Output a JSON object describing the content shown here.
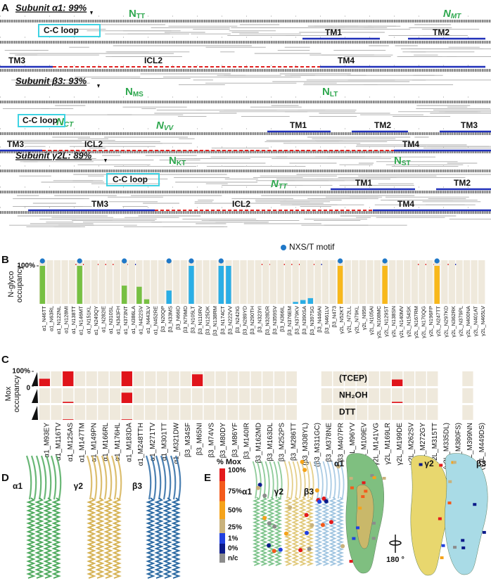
{
  "panel_a": {
    "letter": "A",
    "subunits": [
      {
        "title": "Subunit α1:  99%",
        "sites": [
          {
            "n": "N",
            "rest": "TT"
          },
          {
            "n": "N",
            "rest": "MT"
          }
        ],
        "regions": [
          "C-C loop",
          "TM1",
          "TM2",
          "TM3",
          "ICL2",
          "TM4"
        ]
      },
      {
        "title": "Subunit β3:  93%",
        "sites": [
          {
            "n": "N",
            "rest": "MS"
          },
          {
            "n": "N",
            "rest": "LT"
          },
          {
            "n": "N",
            "rest": "CT"
          },
          {
            "n": "N",
            "rest": "VV"
          }
        ],
        "regions": [
          "C-C loop",
          "TM1",
          "TM2",
          "TM3",
          "TM3",
          "ICL2",
          "TM4"
        ]
      },
      {
        "title": "Subunit γ2L:  89%",
        "sites": [
          {
            "n": "N",
            "rest": "KT"
          },
          {
            "n": "N",
            "rest": "ST"
          },
          {
            "n": "N",
            "rest": "TT"
          }
        ],
        "regions": [
          "C-C loop",
          "TM1",
          "TM2",
          "TM3",
          "ICL2",
          "TM4"
        ]
      }
    ]
  },
  "chart_data": [
    {
      "type": "bar",
      "panel_label": "B",
      "ylabel": [
        "N-glyco",
        "occupancy"
      ],
      "categories": [
        "α1_N46TT",
        "α1_N63RL",
        "α1_N122NL",
        "α1_N128MI",
        "α1_N138TT",
        "α1_N146MT",
        "α1_N151KL",
        "α1_N249QY",
        "α1_N282IE",
        "α1_N310SL",
        "α1_N343FH",
        "α1_N373NT",
        "α1_N386LA",
        "α1_N422SV",
        "α1_N443LV",
        "α1_N452RE",
        "β3_N20QP",
        "β3_N33MS",
        "β3_N66ID",
        "β3_N79MD",
        "β3_N105LT",
        "β3_N110RV",
        "β3_N125DK",
        "β3_N138RM",
        "β3_N174CT",
        "β3_N222VV",
        "β3_N242IG",
        "β3_N289YD",
        "β3_N290TH",
        "β3_N323YI",
        "β3_N328DR",
        "β3_N359SV",
        "β3_N366IL",
        "β3_N376EM",
        "β3_N379KV",
        "β3_N390SA",
        "β3_N397SG",
        "β3_N446AI",
        "β3_N461LV",
        "β3_N473",
        "γ2L_N52KT",
        "γ2L_N72LL",
        "γ2L_N79KL",
        "γ2L_N95II",
        "γ2L_N105AI",
        "γ2L_N108MC",
        "γ2L_N129ST",
        "γ2L_N138SN",
        "γ2L_N140MV",
        "γ2L_N154SK",
        "γ2L_N167RM",
        "γ2L_N170QG",
        "γ2L_N196FP",
        "γ2L_N247TT",
        "γ2L_N297KD",
        "γ2L_N362RK",
        "γ2L_N379PL",
        "γ2L_N400NA",
        "γ2L_N401AT",
        "γ2L_N465LV"
      ],
      "values": [
        100,
        0,
        0,
        0,
        0,
        100,
        0,
        0,
        0,
        0,
        0,
        48,
        0,
        45,
        12,
        0,
        0,
        35,
        0,
        0,
        100,
        0,
        0,
        0,
        100,
        100,
        0,
        0,
        0,
        0,
        0,
        0,
        0,
        0,
        5,
        10,
        15,
        0,
        0,
        0,
        100,
        0,
        0,
        0,
        0,
        0,
        100,
        0,
        0,
        0,
        0,
        0,
        0,
        100,
        0,
        0,
        0,
        0,
        0,
        0
      ],
      "colors": [
        "#77c043",
        "#77c043",
        "#77c043",
        "#77c043",
        "#77c043",
        "#77c043",
        "#77c043",
        "#77c043",
        "#77c043",
        "#77c043",
        "#77c043",
        "#77c043",
        "#77c043",
        "#77c043",
        "#77c043",
        "#77c043",
        "#2aaee6",
        "#2aaee6",
        "#2aaee6",
        "#2aaee6",
        "#2aaee6",
        "#2aaee6",
        "#2aaee6",
        "#2aaee6",
        "#2aaee6",
        "#2aaee6",
        "#2aaee6",
        "#2aaee6",
        "#2aaee6",
        "#2aaee6",
        "#2aaee6",
        "#2aaee6",
        "#2aaee6",
        "#2aaee6",
        "#2aaee6",
        "#2aaee6",
        "#2aaee6",
        "#2aaee6",
        "#2aaee6",
        "#2aaee6",
        "#f8b81b",
        "#f8b81b",
        "#f8b81b",
        "#f8b81b",
        "#f8b81b",
        "#f8b81b",
        "#f8b81b",
        "#f8b81b",
        "#f8b81b",
        "#f8b81b",
        "#f8b81b",
        "#f8b81b",
        "#f8b81b",
        "#f8b81b",
        "#f8b81b",
        "#f8b81b",
        "#f8b81b",
        "#f8b81b",
        "#f8b81b",
        "#f8b81b"
      ],
      "motif": [
        true,
        false,
        false,
        false,
        false,
        true,
        false,
        false,
        false,
        false,
        false,
        true,
        false,
        false,
        false,
        false,
        false,
        true,
        false,
        false,
        true,
        false,
        false,
        false,
        true,
        false,
        false,
        false,
        false,
        false,
        false,
        false,
        false,
        false,
        false,
        false,
        false,
        false,
        false,
        false,
        true,
        false,
        false,
        false,
        false,
        false,
        true,
        false,
        false,
        false,
        false,
        false,
        false,
        true,
        false,
        false,
        false,
        false,
        false,
        false
      ],
      "legend": "NXS/T motif",
      "legend_color": "#1f78c8",
      "ylim": [
        0,
        100
      ],
      "yticks": [
        {
          "value": 100,
          "label": "100%"
        }
      ]
    },
    {
      "type": "heatmap",
      "panel_label": "C",
      "ylabel": [
        "Mox",
        "occupancy"
      ],
      "categories": [
        "α1_M93EY",
        "α1_M116TV",
        "α1_M125AS",
        "α1_M147TM",
        "α1_M149PN",
        "α1_M166RL",
        "α1_M176HL",
        "α1_M183DA",
        "α1_M248TTH",
        "α1_M271TV",
        "α1_M301TT",
        "α1_M321DW",
        "β3_M34SF",
        "β3_M65NI",
        "β3_M74VS",
        "β3_M80DY",
        "β3_M86YF",
        "β3_M140IR",
        "β3_M162MD",
        "β3_M163DL",
        "β3_M252PS",
        "β3_M286TT",
        "(β3_M308YL)",
        "(β3_M311GC)",
        "β3_M378NE",
        "β3_M407PR",
        "γ2L_M96YV",
        "γ2L_M109EV",
        "γ2L_M141VG",
        "γ2L_M169LR",
        "γ2L_M199DE",
        "γ2L_M262SV",
        "γ2L_M272GY",
        "γ2L_M315TT",
        "(γ2L_M335DL)",
        "(γ2L_M380FS)",
        "γ2L_M399NN",
        "(γ2L_M449DS)"
      ],
      "series": [
        {
          "name": "(TCEP)",
          "color": "#e0141b",
          "values": [
            50,
            0,
            100,
            0,
            0,
            0,
            0,
            100,
            0,
            0,
            0,
            0,
            0,
            80,
            0,
            0,
            0,
            0,
            0,
            0,
            0,
            0,
            null,
            null,
            0,
            0,
            0,
            0,
            0,
            0,
            45,
            0,
            0,
            0,
            null,
            null,
            0,
            null
          ]
        },
        {
          "name": "NH₂OH",
          "color": "#e0141b",
          "values": [
            0,
            0,
            8,
            0,
            0,
            0,
            0,
            70,
            0,
            0,
            0,
            0,
            0,
            0,
            0,
            0,
            0,
            0,
            0,
            0,
            0,
            0,
            null,
            null,
            0,
            0,
            0,
            0,
            0,
            0,
            8,
            0,
            0,
            0,
            null,
            null,
            0,
            null
          ]
        },
        {
          "name": "DTT",
          "color": "#e0141b",
          "values": [
            0,
            0,
            4,
            0,
            0,
            0,
            0,
            4,
            0,
            0,
            0,
            0,
            0,
            0,
            0,
            0,
            0,
            0,
            0,
            0,
            0,
            0,
            null,
            null,
            0,
            0,
            0,
            0,
            0,
            0,
            0,
            0,
            0,
            0,
            null,
            null,
            0,
            null
          ]
        }
      ],
      "ylim": [
        0,
        100
      ],
      "yticks": [
        {
          "value": 100,
          "label": "100%"
        },
        0
      ]
    }
  ],
  "panel_d": {
    "letter": "D",
    "labels": [
      "α1",
      "γ2",
      "β3"
    ]
  },
  "panel_e": {
    "letter": "E",
    "scale_title": "% Mox",
    "scale": [
      {
        "label": "100%",
        "color": "#e31a1c"
      },
      {
        "label": "75%",
        "color": "#f35a1c"
      },
      {
        "label": "50%",
        "color": "#f5a31a"
      },
      {
        "label": "25%",
        "color": "#c9b27c"
      },
      {
        "label": "1%",
        "color": "#2040e0"
      },
      {
        "label": "0%",
        "color": "#0b1a8a"
      },
      {
        "label": "n/c",
        "color": "#8c8c8c"
      }
    ],
    "ribbon_labels": [
      "α1",
      "γ2",
      "β3"
    ],
    "surface_labels": [
      "α1",
      "γ2",
      "β3"
    ],
    "rotation": "180 °"
  }
}
